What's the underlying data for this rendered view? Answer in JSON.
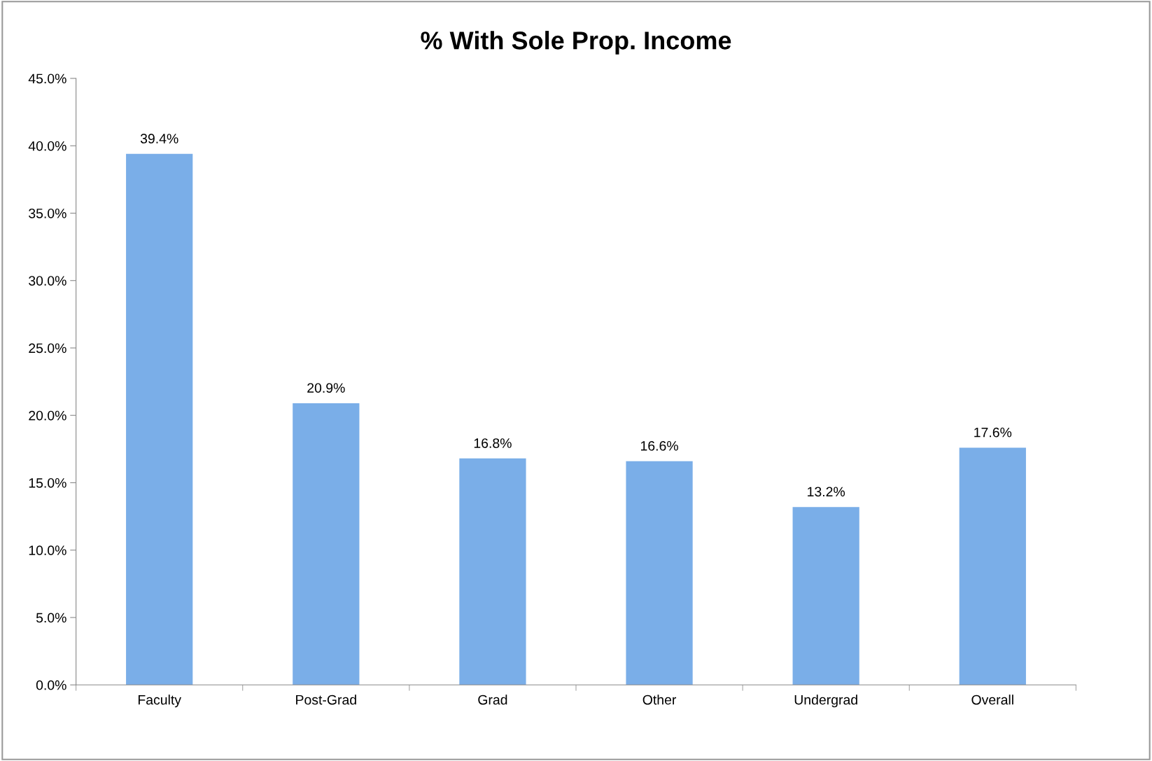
{
  "chart_data": {
    "type": "bar",
    "title": "% With Sole Prop. Income",
    "categories": [
      "Faculty",
      "Post-Grad",
      "Grad",
      "Other",
      "Undergrad",
      "Overall"
    ],
    "values": [
      39.4,
      20.9,
      16.8,
      16.6,
      13.2,
      17.6
    ],
    "value_labels": [
      "39.4%",
      "20.9%",
      "16.8%",
      "16.6%",
      "13.2%",
      "17.6%"
    ],
    "color": "#7aaee8",
    "ylim": [
      0,
      45
    ],
    "yticks": [
      {
        "value": 0,
        "label": "0.0%"
      },
      {
        "value": 5,
        "label": "5.0%"
      },
      {
        "value": 10,
        "label": "10.0%"
      },
      {
        "value": 15,
        "label": "15.0%"
      },
      {
        "value": 20,
        "label": "20.0%"
      },
      {
        "value": 25,
        "label": "25.0%"
      },
      {
        "value": 30,
        "label": "30.0%"
      },
      {
        "value": 35,
        "label": "35.0%"
      },
      {
        "value": 40,
        "label": "40.0%"
      },
      {
        "value": 45,
        "label": "45.0%"
      }
    ],
    "grid": false,
    "legend": false
  }
}
